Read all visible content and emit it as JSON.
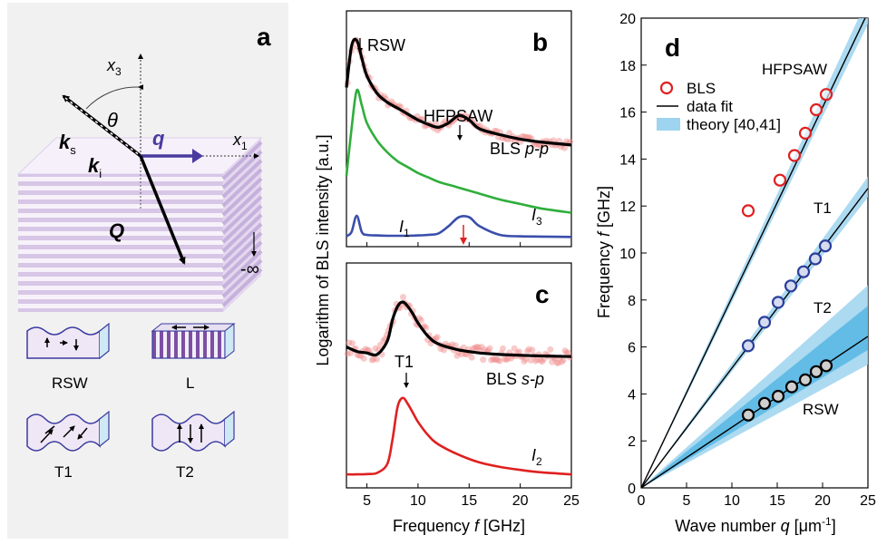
{
  "panel_a": {
    "letter": "a",
    "x3": "x",
    "x3_sub": "3",
    "x1": "x",
    "x1_sub": "1",
    "theta": "θ",
    "ks": "k",
    "ks_sub": "s",
    "ki": "k",
    "ki_sub": "i",
    "q": "q",
    "Q": "Q",
    "minus_inf": "-∞",
    "modes": [
      "RSW",
      "L",
      "T1",
      "T2"
    ]
  },
  "colors": {
    "green": "#2fae3b",
    "blue": "#3a4eaa",
    "red": "#e02020",
    "fit": "#000000",
    "theory": "#9ed4ef",
    "theory_dark": "#55b6e4",
    "pink": "#f08a8a"
  },
  "chart_data": [
    {
      "type": "line",
      "panel": "b",
      "letter": "b",
      "annotations": [
        "RSW",
        "HFPSAW"
      ],
      "series_labels": {
        "BLS": "BLS",
        "pp": "p-p",
        "I3": "I",
        "I3_sub": "3",
        "I1": "I",
        "I1_sub": "1"
      },
      "x": [
        3,
        3.5,
        4,
        4.5,
        5,
        6,
        7,
        8,
        9,
        10,
        11,
        12,
        13,
        14,
        15,
        16,
        18,
        20,
        22,
        25
      ],
      "series": [
        {
          "name": "BLS p-p",
          "values": [
            5.4,
            6.8,
            7.0,
            6.4,
            5.8,
            5.2,
            4.9,
            4.7,
            4.5,
            4.3,
            4.15,
            4.05,
            4.2,
            4.45,
            4.3,
            4.0,
            3.8,
            3.65,
            3.55,
            3.45
          ]
        },
        {
          "name": "I3",
          "values": [
            2.4,
            4.0,
            5.3,
            4.8,
            4.2,
            3.6,
            3.2,
            2.9,
            2.7,
            2.5,
            2.35,
            2.2,
            2.1,
            2.0,
            1.9,
            1.8,
            1.6,
            1.45,
            1.3,
            1.15
          ]
        },
        {
          "name": "I1",
          "values": [
            0.35,
            0.5,
            1.05,
            0.5,
            0.4,
            0.38,
            0.37,
            0.37,
            0.37,
            0.38,
            0.4,
            0.45,
            0.7,
            1.0,
            1.0,
            0.7,
            0.4,
            0.35,
            0.34,
            0.33
          ]
        }
      ],
      "ylim": [
        0,
        8
      ],
      "xlim": [
        3,
        25
      ]
    },
    {
      "type": "line",
      "panel": "c",
      "letter": "c",
      "annotations": [
        "T1"
      ],
      "series_labels": {
        "BLS": "BLS",
        "sp": "s-p",
        "I2": "I",
        "I2_sub": "2"
      },
      "xlabel": "Frequency f [GHz]",
      "xlabel_parts": [
        "Frequency ",
        "f",
        " [GHz]"
      ],
      "xticks": [
        5,
        10,
        15,
        20,
        25
      ],
      "x": [
        3,
        4,
        5,
        6,
        7,
        7.5,
        8,
        8.5,
        9,
        9.5,
        10,
        11,
        12,
        14,
        16,
        18,
        20,
        22,
        25
      ],
      "series": [
        {
          "name": "BLS s-p",
          "values": [
            4.7,
            4.55,
            4.5,
            4.45,
            4.9,
            5.6,
            6.05,
            6.2,
            6.05,
            5.8,
            5.5,
            5.05,
            4.8,
            4.6,
            4.5,
            4.45,
            4.42,
            4.4,
            4.38
          ]
        },
        {
          "name": "I2",
          "values": [
            0.45,
            0.45,
            0.46,
            0.5,
            0.8,
            1.6,
            2.7,
            3.0,
            2.8,
            2.5,
            2.2,
            1.75,
            1.45,
            1.1,
            0.85,
            0.7,
            0.6,
            0.52,
            0.45
          ]
        }
      ],
      "ylim": [
        0,
        7.5
      ],
      "xlim": [
        3,
        25
      ]
    },
    {
      "type": "scatter",
      "panel": "d",
      "letter": "d",
      "xlabel": "Wave number q [μm⁻¹]",
      "xlabel_parts": [
        "Wave number ",
        "q",
        " [μm",
        "-1",
        "]"
      ],
      "ylabel": "Frequency f [GHz]",
      "ylabel_parts": [
        "Frequency ",
        "f",
        " [GHz]"
      ],
      "shared_ylabel": "Logarithm of BLS intensity [a.u.]",
      "xlim": [
        0,
        25
      ],
      "ylim": [
        0,
        20
      ],
      "xticks": [
        0,
        5,
        10,
        15,
        20,
        25
      ],
      "yticks": [
        0,
        2,
        4,
        6,
        8,
        10,
        12,
        14,
        16,
        18,
        20
      ],
      "legend": [
        "BLS",
        "data fit",
        "theory [40,41]"
      ],
      "legend_position": "top-left",
      "mode_labels": [
        "HFPSAW",
        "T1",
        "T2",
        "RSW"
      ],
      "series": [
        {
          "name": "HFPSAW",
          "slope": 0.81,
          "x": [
            11.8,
            15.3,
            16.9,
            18.1,
            19.3,
            20.4
          ],
          "y": [
            11.8,
            13.1,
            14.15,
            15.1,
            16.1,
            16.75
          ]
        },
        {
          "name": "T1",
          "slope": 0.51,
          "x": [
            11.8,
            13.6,
            15.1,
            16.5,
            17.9,
            19.2,
            20.3
          ],
          "y": [
            6.05,
            7.05,
            7.9,
            8.6,
            9.2,
            9.75,
            10.3
          ]
        },
        {
          "name": "RSW",
          "slope": 0.258,
          "x": [
            11.8,
            13.6,
            15.1,
            16.6,
            18.1,
            19.3,
            20.4
          ],
          "y": [
            3.1,
            3.6,
            3.9,
            4.3,
            4.6,
            4.95,
            5.2
          ]
        }
      ]
    }
  ]
}
